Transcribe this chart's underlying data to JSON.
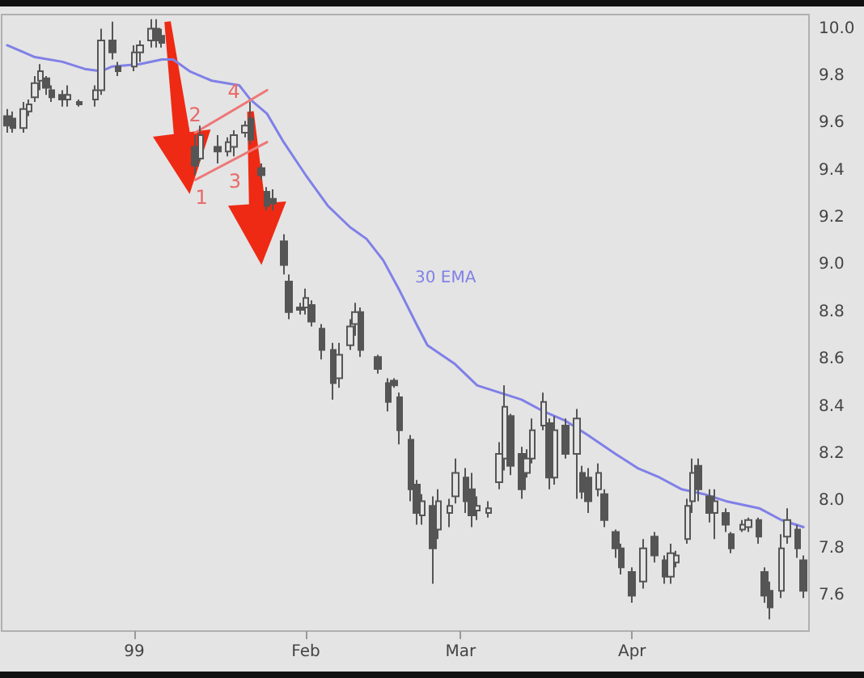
{
  "chart_data": {
    "type": "candlestick",
    "series": [
      {
        "color": "#555555",
        "x": [
          "1998-12-09",
          "1998-12-10",
          "1998-12-12",
          "1998-12-13",
          "1998-12-14",
          "1998-12-15",
          "1998-12-16",
          "1998-12-17",
          "1998-12-19",
          "1998-12-20",
          "1998-12-22",
          "1998-12-25",
          "1998-12-26",
          "1998-12-28",
          "1998-12-29",
          "1999-01-01",
          "1999-01-02",
          "1999-01-04",
          "1999-01-05",
          "1999-01-06",
          "1999-01-12",
          "1999-01-13",
          "1999-01-16",
          "1999-01-18",
          "1999-01-19",
          "1999-01-21",
          "1999-01-22",
          "1999-01-24",
          "1999-01-25",
          "1999-01-26",
          "1999-01-28",
          "1999-01-29",
          "1999-01-31",
          "1999-02-01",
          "1999-02-02",
          "1999-02-04",
          "1999-02-06",
          "1999-02-07",
          "1999-02-09",
          "1999-02-10",
          "1999-02-11",
          "1999-02-14",
          "1999-02-16",
          "1999-02-17",
          "1999-02-18",
          "1999-02-20",
          "1999-02-21",
          "1999-02-22",
          "1999-02-24",
          "1999-02-25",
          "1999-02-27",
          "1999-02-28",
          "1999-03-02",
          "1999-03-03",
          "1999-03-04",
          "1999-03-06",
          "1999-03-08",
          "1999-03-09",
          "1999-03-10",
          "1999-03-12",
          "1999-03-13",
          "1999-03-14",
          "1999-03-16",
          "1999-03-17",
          "1999-03-18",
          "1999-03-20",
          "1999-03-22",
          "1999-03-23",
          "1999-03-24",
          "1999-03-26",
          "1999-03-27",
          "1999-03-29",
          "1999-03-30",
          "1999-04-01",
          "1999-04-03",
          "1999-04-05",
          "1999-04-07",
          "1999-04-08",
          "1999-04-09",
          "1999-04-11",
          "1999-04-12",
          "1999-04-13",
          "1999-04-15",
          "1999-04-16",
          "1999-04-18",
          "1999-04-19",
          "1999-04-21",
          "1999-04-22",
          "1999-04-24",
          "1999-04-25",
          "1999-04-26",
          "1999-04-28",
          "1999-04-29",
          "1999-05-01",
          "1999-05-02"
        ],
        "ohlc": [
          [
            9.63,
            9.66,
            9.56,
            9.59
          ],
          [
            9.62,
            9.65,
            9.56,
            9.58
          ],
          [
            9.58,
            9.69,
            9.56,
            9.66
          ],
          [
            9.65,
            9.7,
            9.63,
            9.68
          ],
          [
            9.71,
            9.8,
            9.69,
            9.77
          ],
          [
            9.78,
            9.85,
            9.74,
            9.82
          ],
          [
            9.79,
            9.8,
            9.72,
            9.75
          ],
          [
            9.74,
            9.76,
            9.69,
            9.71
          ],
          [
            9.72,
            9.74,
            9.67,
            9.7
          ],
          [
            9.7,
            9.76,
            9.67,
            9.72
          ],
          [
            9.69,
            9.7,
            9.67,
            9.68
          ],
          [
            9.7,
            9.76,
            9.67,
            9.74
          ],
          [
            9.74,
            10.0,
            9.72,
            9.95
          ],
          [
            9.95,
            10.03,
            9.87,
            9.9
          ],
          [
            9.84,
            9.86,
            9.8,
            9.82
          ],
          [
            9.84,
            9.93,
            9.82,
            9.9
          ],
          [
            9.9,
            9.95,
            9.86,
            9.93
          ],
          [
            9.95,
            10.04,
            9.92,
            10.0
          ],
          [
            10.0,
            10.04,
            9.92,
            9.95
          ],
          [
            9.97,
            10.0,
            9.92,
            9.94
          ],
          [
            9.5,
            9.55,
            9.38,
            9.42
          ],
          [
            9.45,
            9.59,
            9.44,
            9.55
          ],
          [
            9.5,
            9.55,
            9.43,
            9.48
          ],
          [
            9.48,
            9.54,
            9.46,
            9.52
          ],
          [
            9.5,
            9.57,
            9.46,
            9.55
          ],
          [
            9.56,
            9.61,
            9.54,
            9.59
          ],
          [
            9.62,
            9.69,
            9.51,
            9.53
          ],
          [
            9.41,
            9.43,
            9.36,
            9.38
          ],
          [
            9.31,
            9.33,
            9.23,
            9.25
          ],
          [
            9.28,
            9.32,
            9.23,
            9.26
          ],
          [
            9.1,
            9.13,
            8.96,
            9.0
          ],
          [
            8.93,
            8.96,
            8.77,
            8.8
          ],
          [
            8.82,
            8.84,
            8.79,
            8.81
          ],
          [
            8.82,
            8.9,
            8.79,
            8.86
          ],
          [
            8.83,
            8.85,
            8.74,
            8.76
          ],
          [
            8.73,
            8.75,
            8.6,
            8.64
          ],
          [
            8.64,
            8.67,
            8.43,
            8.5
          ],
          [
            8.52,
            8.67,
            8.48,
            8.62
          ],
          [
            8.66,
            8.77,
            8.64,
            8.74
          ],
          [
            8.75,
            8.84,
            8.7,
            8.8
          ],
          [
            8.8,
            8.82,
            8.61,
            8.64
          ],
          [
            8.61,
            8.62,
            8.54,
            8.56
          ],
          [
            8.5,
            8.52,
            8.38,
            8.42
          ],
          [
            8.51,
            8.52,
            8.48,
            8.49
          ],
          [
            8.44,
            8.46,
            8.24,
            8.3
          ],
          [
            8.26,
            8.28,
            8.0,
            8.05
          ],
          [
            8.07,
            8.09,
            7.9,
            7.95
          ],
          [
            7.94,
            8.03,
            7.9,
            8.0
          ],
          [
            7.98,
            8.02,
            7.65,
            7.8
          ],
          [
            7.88,
            8.05,
            7.84,
            8.0
          ],
          [
            7.95,
            8.01,
            7.89,
            7.98
          ],
          [
            8.02,
            8.18,
            7.99,
            8.12
          ],
          [
            8.1,
            8.14,
            7.95,
            8.0
          ],
          [
            8.05,
            8.12,
            7.89,
            7.94
          ],
          [
            7.96,
            8.02,
            7.92,
            7.98
          ],
          [
            7.95,
            8.0,
            7.93,
            7.97
          ],
          [
            8.08,
            8.25,
            8.05,
            8.2
          ],
          [
            8.18,
            8.49,
            8.13,
            8.4
          ],
          [
            8.36,
            8.37,
            8.11,
            8.15
          ],
          [
            8.2,
            8.23,
            8.01,
            8.05
          ],
          [
            8.12,
            8.22,
            8.1,
            8.18
          ],
          [
            8.18,
            8.35,
            8.16,
            8.3
          ],
          [
            8.32,
            8.46,
            8.3,
            8.42
          ],
          [
            8.33,
            8.35,
            8.05,
            8.1
          ],
          [
            8.1,
            8.36,
            8.07,
            8.3
          ],
          [
            8.32,
            8.35,
            8.18,
            8.2
          ],
          [
            8.2,
            8.39,
            8.01,
            8.35
          ],
          [
            8.12,
            8.15,
            8.01,
            8.04
          ],
          [
            8.1,
            8.14,
            7.95,
            8.0
          ],
          [
            8.05,
            8.16,
            8.02,
            8.12
          ],
          [
            8.03,
            8.05,
            7.89,
            7.92
          ],
          [
            7.87,
            7.88,
            7.76,
            7.8
          ],
          [
            7.8,
            7.82,
            7.69,
            7.72
          ],
          [
            7.7,
            7.72,
            7.57,
            7.6
          ],
          [
            7.66,
            7.84,
            7.63,
            7.8
          ],
          [
            7.85,
            7.87,
            7.74,
            7.77
          ],
          [
            7.75,
            7.77,
            7.65,
            7.68
          ],
          [
            7.68,
            7.82,
            7.65,
            7.78
          ],
          [
            7.74,
            7.79,
            7.72,
            7.77
          ],
          [
            7.84,
            8.01,
            7.82,
            7.98
          ],
          [
            8.0,
            8.18,
            7.95,
            8.12
          ],
          [
            8.15,
            8.18,
            8.0,
            8.05
          ],
          [
            8.02,
            8.05,
            7.91,
            7.95
          ],
          [
            7.95,
            8.05,
            7.84,
            8.0
          ],
          [
            7.95,
            7.97,
            7.87,
            7.9
          ],
          [
            7.86,
            7.87,
            7.78,
            7.8
          ],
          [
            7.88,
            7.92,
            7.87,
            7.9
          ],
          [
            7.89,
            7.93,
            7.87,
            7.92
          ],
          [
            7.92,
            7.93,
            7.82,
            7.85
          ],
          [
            7.7,
            7.72,
            7.57,
            7.6
          ],
          [
            7.62,
            7.66,
            7.5,
            7.55
          ],
          [
            7.62,
            7.86,
            7.59,
            7.8
          ],
          [
            7.85,
            7.97,
            7.82,
            7.92
          ],
          [
            7.88,
            7.9,
            7.76,
            7.8
          ],
          [
            7.75,
            7.77,
            7.59,
            7.62
          ]
        ]
      },
      {
        "type": "line",
        "name": "30 EMA",
        "color": "#8080e8",
        "x": [
          "1998-12-09",
          "1998-12-12",
          "1998-12-14",
          "1998-12-19",
          "1998-12-23",
          "1998-12-26",
          "1998-12-28",
          "1999-01-02",
          "1999-01-06",
          "1999-01-08",
          "1999-01-11",
          "1999-01-15",
          "1999-01-20",
          "1999-01-22",
          "1999-01-25",
          "1999-01-28",
          "1999-02-01",
          "1999-02-05",
          "1999-02-09",
          "1999-02-12",
          "1999-02-15",
          "1999-02-18",
          "1999-02-21",
          "1999-02-23",
          "1999-02-28",
          "1999-03-04",
          "1999-03-08",
          "1999-03-12",
          "1999-03-16",
          "1999-03-20",
          "1999-03-24",
          "1999-03-29",
          "1999-04-02",
          "1999-04-06",
          "1999-04-10",
          "1999-04-14",
          "1999-04-18",
          "1999-04-24",
          "1999-04-28",
          "1999-05-02"
        ],
        "values": [
          9.93,
          9.9,
          9.88,
          9.86,
          9.83,
          9.82,
          9.84,
          9.85,
          9.87,
          9.87,
          9.82,
          9.78,
          9.76,
          9.7,
          9.64,
          9.52,
          9.38,
          9.25,
          9.16,
          9.11,
          9.02,
          8.89,
          8.75,
          8.66,
          8.58,
          8.49,
          8.46,
          8.43,
          8.38,
          8.34,
          8.28,
          8.2,
          8.14,
          8.1,
          8.05,
          8.03,
          8.0,
          7.97,
          7.92,
          7.89
        ]
      },
      {
        "type": "line",
        "color": "#ee7777",
        "x": [
          "1999-01-12",
          "1999-01-25"
        ],
        "values": [
          9.56,
          9.74
        ]
      },
      {
        "type": "line",
        "color": "#ee7777",
        "x": [
          "1999-01-12",
          "1999-01-25"
        ],
        "values": [
          9.36,
          9.52
        ]
      }
    ],
    "annotations": [
      {
        "text": "1",
        "x": "1999-01-12",
        "y": 9.36
      },
      {
        "text": "2",
        "x": "1999-01-12",
        "y": 9.56
      },
      {
        "text": "3",
        "x": "1999-01-18",
        "y": 9.43
      },
      {
        "text": "4",
        "x": "1999-01-19",
        "y": 9.66
      }
    ],
    "xlim": [
      "1998-12-08",
      "1999-05-03"
    ],
    "xticks": [
      {
        "value": "1999-01-01",
        "label": "99"
      },
      {
        "value": "1999-02-01",
        "label": "Feb"
      },
      {
        "value": "1999-03-01",
        "label": "Mar"
      },
      {
        "value": "1999-04-01",
        "label": "Apr"
      }
    ],
    "ylim": [
      7.45,
      10.06
    ],
    "yticks": [
      7.6,
      7.8,
      {
        "value": 8.0,
        "label": "8.0"
      },
      8.2,
      8.4,
      8.6,
      8.8,
      {
        "value": 9.0,
        "label": "9.0"
      },
      9.2,
      9.4,
      9.6,
      9.8,
      {
        "value": 10.0,
        "label": "10.0"
      }
    ]
  }
}
